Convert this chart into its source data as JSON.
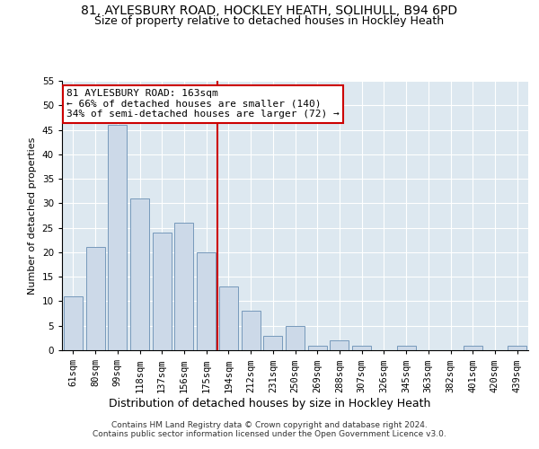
{
  "title1": "81, AYLESBURY ROAD, HOCKLEY HEATH, SOLIHULL, B94 6PD",
  "title2": "Size of property relative to detached houses in Hockley Heath",
  "xlabel": "Distribution of detached houses by size in Hockley Heath",
  "ylabel": "Number of detached properties",
  "categories": [
    "61sqm",
    "80sqm",
    "99sqm",
    "118sqm",
    "137sqm",
    "156sqm",
    "175sqm",
    "194sqm",
    "212sqm",
    "231sqm",
    "250sqm",
    "269sqm",
    "288sqm",
    "307sqm",
    "326sqm",
    "345sqm",
    "363sqm",
    "382sqm",
    "401sqm",
    "420sqm",
    "439sqm"
  ],
  "values": [
    11,
    21,
    46,
    31,
    24,
    26,
    20,
    13,
    8,
    3,
    5,
    1,
    2,
    1,
    0,
    1,
    0,
    0,
    1,
    0,
    1
  ],
  "bar_color": "#ccd9e8",
  "bar_edge_color": "#7799bb",
  "vline_color": "#cc0000",
  "vline_position": 6.5,
  "ylim": [
    0,
    55
  ],
  "yticks": [
    0,
    5,
    10,
    15,
    20,
    25,
    30,
    35,
    40,
    45,
    50,
    55
  ],
  "background_color": "#ffffff",
  "plot_background": "#dde8f0",
  "footer1": "Contains HM Land Registry data © Crown copyright and database right 2024.",
  "footer2": "Contains public sector information licensed under the Open Government Licence v3.0.",
  "annotation_line1": "81 AYLESBURY ROAD: 163sqm",
  "annotation_line2": "← 66% of detached houses are smaller (140)",
  "annotation_line3": "34% of semi-detached houses are larger (72) →",
  "annotation_box_color": "#ffffff",
  "annotation_box_edge": "#cc0000",
  "title1_fontsize": 10,
  "title2_fontsize": 9,
  "ylabel_fontsize": 8,
  "xlabel_fontsize": 9,
  "tick_fontsize": 7.5,
  "annotation_fontsize": 8,
  "footer_fontsize": 6.5
}
